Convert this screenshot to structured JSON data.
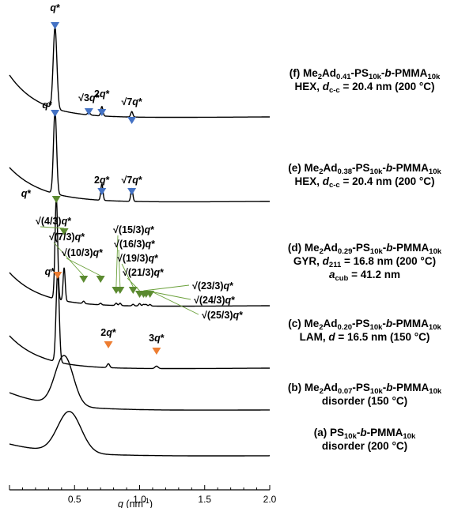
{
  "chart_data": {
    "type": "line",
    "xlabel_var": "q",
    "xlabel_unit": "(nm",
    "xlabel_exp": "-1",
    "xlabel_close": ")",
    "xlim": [
      0.0,
      2.0
    ],
    "xticks": [
      "0.5",
      "1.0",
      "1.5",
      "2.0"
    ],
    "ylabel": "",
    "colors": {
      "line": "#000000",
      "blue": "#4472c4",
      "green": "#5b8a30",
      "orange": "#ed7d31"
    },
    "series": [
      {
        "id": "f",
        "legend": [
          [
            [
              "(f) Me",
              "n"
            ],
            [
              "2",
              "sub"
            ],
            [
              "Ad",
              "n"
            ],
            [
              "0.41",
              "sub"
            ],
            [
              "-PS",
              "n"
            ],
            [
              "10k",
              "sub"
            ],
            [
              "-",
              "n"
            ],
            [
              "b",
              "i"
            ],
            [
              "-PMMA",
              "n"
            ],
            [
              "10k",
              "sub"
            ]
          ],
          [
            [
              "HEX, ",
              "n"
            ],
            [
              "d",
              "i"
            ],
            [
              "c-c",
              "sub"
            ],
            [
              " = 20.4 nm (200 °C)",
              "n"
            ]
          ]
        ],
        "peaks": [
          {
            "q": 0.35,
            "label": "q*",
            "color": "blue"
          },
          {
            "q": 0.61,
            "label": "√3q*",
            "color": "blue"
          },
          {
            "q": 0.71,
            "label": "2q*",
            "color": "blue"
          },
          {
            "q": 0.94,
            "label": "√7q*",
            "color": "blue"
          }
        ]
      },
      {
        "id": "e",
        "legend": [
          [
            [
              "(e) Me",
              "n"
            ],
            [
              "2",
              "sub"
            ],
            [
              "Ad",
              "n"
            ],
            [
              "0.38",
              "sub"
            ],
            [
              "-PS",
              "n"
            ],
            [
              "10k",
              "sub"
            ],
            [
              "-",
              "n"
            ],
            [
              "b",
              "i"
            ],
            [
              "-PMMA",
              "n"
            ],
            [
              "10k",
              "sub"
            ]
          ],
          [
            [
              "HEX, ",
              "n"
            ],
            [
              "d",
              "i"
            ],
            [
              "c-c",
              "sub"
            ],
            [
              " = 20.4 nm (200 °C)",
              "n"
            ]
          ]
        ],
        "peaks": [
          {
            "q": 0.35,
            "label": "q*",
            "color": "blue"
          },
          {
            "q": 0.71,
            "label": "2q*",
            "color": "blue"
          },
          {
            "q": 0.94,
            "label": "√7q*",
            "color": "blue"
          }
        ]
      },
      {
        "id": "d",
        "legend": [
          [
            [
              "(d) Me",
              "n"
            ],
            [
              "2",
              "sub"
            ],
            [
              "Ad",
              "n"
            ],
            [
              "0.29",
              "sub"
            ],
            [
              "-PS",
              "n"
            ],
            [
              "10k",
              "sub"
            ],
            [
              "-",
              "n"
            ],
            [
              "b",
              "i"
            ],
            [
              "-PMMA",
              "n"
            ],
            [
              "10k",
              "sub"
            ]
          ],
          [
            [
              "GYR, ",
              "n"
            ],
            [
              "d",
              "i"
            ],
            [
              "211",
              "sub"
            ],
            [
              " = 16.8 nm (200 °C)",
              "n"
            ]
          ],
          [
            [
              "a",
              "i"
            ],
            [
              "cub",
              "sub"
            ],
            [
              " = 41.2 nm",
              "n"
            ]
          ]
        ],
        "peaks": [
          {
            "q": 0.36,
            "label": "q*",
            "color": "green"
          },
          {
            "q": 0.42,
            "label": "√(4/3)q*",
            "color": "green"
          },
          {
            "q": 0.57,
            "label": "√(7/3)q*",
            "color": "green"
          },
          {
            "q": 0.7,
            "label": "√(10/3)q*",
            "color": "green"
          },
          {
            "q": 0.82,
            "label": "√(15/3)q*",
            "color": "green"
          },
          {
            "q": 0.85,
            "label": "√(16/3)q*",
            "color": "green"
          },
          {
            "q": 0.95,
            "label": "√(19/3)q*",
            "color": "green"
          },
          {
            "q": 1.0,
            "label": "√(21/3)q*",
            "color": "green"
          },
          {
            "q": 1.03,
            "label": "√(23/3)q*",
            "color": "green"
          },
          {
            "q": 1.05,
            "label": "√(24/3)q*",
            "color": "green"
          },
          {
            "q": 1.08,
            "label": "√(25/3)q*",
            "color": "green"
          }
        ]
      },
      {
        "id": "c",
        "legend": [
          [
            [
              "(c) Me",
              "n"
            ],
            [
              "2",
              "sub"
            ],
            [
              "Ad",
              "n"
            ],
            [
              "0.20",
              "sub"
            ],
            [
              "-PS",
              "n"
            ],
            [
              "10k",
              "sub"
            ],
            [
              "-",
              "n"
            ],
            [
              "b",
              "i"
            ],
            [
              "-PMMA",
              "n"
            ],
            [
              "10k",
              "sub"
            ]
          ],
          [
            [
              "LAM, ",
              "n"
            ],
            [
              "d",
              "i"
            ],
            [
              " = 16.5 nm (150 °C)",
              "n"
            ]
          ]
        ],
        "peaks": [
          {
            "q": 0.37,
            "label": "q*",
            "color": "orange"
          },
          {
            "q": 0.76,
            "label": "2q*",
            "color": "orange"
          },
          {
            "q": 1.13,
            "label": "3q*",
            "color": "orange"
          }
        ]
      },
      {
        "id": "b",
        "legend": [
          [
            [
              "(b) Me",
              "n"
            ],
            [
              "2",
              "sub"
            ],
            [
              "Ad",
              "n"
            ],
            [
              "0.07",
              "sub"
            ],
            [
              "-PS",
              "n"
            ],
            [
              "10k",
              "sub"
            ],
            [
              "-",
              "n"
            ],
            [
              "b",
              "i"
            ],
            [
              "-PMMA",
              "n"
            ],
            [
              "10k",
              "sub"
            ]
          ],
          [
            [
              "disorder (150 °C)",
              "n"
            ]
          ]
        ],
        "peaks": []
      },
      {
        "id": "a",
        "legend": [
          [
            [
              "(a) PS",
              "n"
            ],
            [
              "10k",
              "sub"
            ],
            [
              "-",
              "n"
            ],
            [
              "b",
              "i"
            ],
            [
              "-PMMA",
              "n"
            ],
            [
              "10k",
              "sub"
            ]
          ],
          [
            [
              "disorder (200 °C)",
              "n"
            ]
          ]
        ],
        "peaks": []
      }
    ]
  }
}
